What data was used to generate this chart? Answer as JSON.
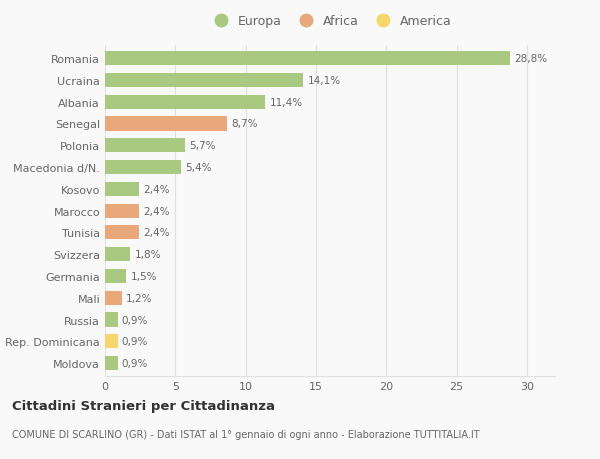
{
  "categories": [
    "Romania",
    "Ucraina",
    "Albania",
    "Senegal",
    "Polonia",
    "Macedonia d/N.",
    "Kosovo",
    "Marocco",
    "Tunisia",
    "Svizzera",
    "Germania",
    "Mali",
    "Russia",
    "Rep. Dominicana",
    "Moldova"
  ],
  "values": [
    28.8,
    14.1,
    11.4,
    8.7,
    5.7,
    5.4,
    2.4,
    2.4,
    2.4,
    1.8,
    1.5,
    1.2,
    0.9,
    0.9,
    0.9
  ],
  "labels": [
    "28,8%",
    "14,1%",
    "11,4%",
    "8,7%",
    "5,7%",
    "5,4%",
    "2,4%",
    "2,4%",
    "2,4%",
    "1,8%",
    "1,5%",
    "1,2%",
    "0,9%",
    "0,9%",
    "0,9%"
  ],
  "continents": [
    "Europa",
    "Europa",
    "Europa",
    "Africa",
    "Europa",
    "Europa",
    "Europa",
    "Africa",
    "Africa",
    "Europa",
    "Europa",
    "Africa",
    "Europa",
    "America",
    "Europa"
  ],
  "continent_colors": {
    "Europa": "#a8c97f",
    "Africa": "#e8a87c",
    "America": "#f5d76e"
  },
  "legend_labels": [
    "Europa",
    "Africa",
    "America"
  ],
  "legend_colors": [
    "#a8c97f",
    "#e8a87c",
    "#f5d76e"
  ],
  "xlim": [
    0,
    32
  ],
  "xticks": [
    0,
    5,
    10,
    15,
    20,
    25,
    30
  ],
  "title": "Cittadini Stranieri per Cittadinanza",
  "subtitle": "COMUNE DI SCARLINO (GR) - Dati ISTAT al 1° gennaio di ogni anno - Elaborazione TUTTITALIA.IT",
  "background_color": "#f9f9f9",
  "grid_color": "#e0e0e0",
  "bar_height": 0.65
}
